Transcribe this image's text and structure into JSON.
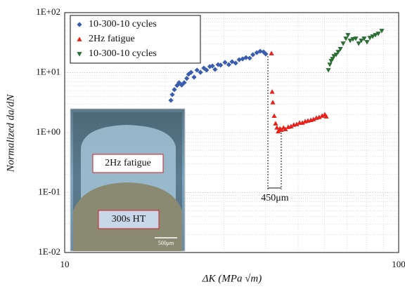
{
  "chart_data": {
    "type": "scatter",
    "x_label": "ΔK (MPa √m)",
    "y_label": "Normalized da/dN",
    "xlim": [
      10,
      100
    ],
    "xticks": [
      10,
      100
    ],
    "ylim": [
      0.01,
      100
    ],
    "yticks": [
      {
        "value": 0.01,
        "label": "1E-02"
      },
      {
        "value": 0.1,
        "label": "1E-01"
      },
      {
        "value": 1,
        "label": "1E+00"
      },
      {
        "value": 10,
        "label": "1E+01"
      },
      {
        "value": 100,
        "label": "1E+02"
      }
    ],
    "log_x": true,
    "log_y": true,
    "grid": true,
    "minor_grid": true,
    "legend": "upper left",
    "series": [
      {
        "name": "10-300-10 cycles",
        "color": "#3a5dae",
        "marker": "diamond",
        "x": [
          20.8,
          21.0,
          21.3,
          21.7,
          22.0,
          22.4,
          22.8,
          23.2,
          23.5,
          23.9,
          24.4,
          24.9,
          25.5,
          26.1,
          26.6,
          27.2,
          27.7,
          28.2,
          28.8,
          29.3,
          30.2,
          31.0,
          31.7,
          32.5,
          33.3,
          34.1,
          34.9,
          35.8,
          36.6,
          37.6,
          38.5,
          39.4,
          40.0
        ],
        "values": [
          3.45,
          4.3,
          5.2,
          6.1,
          6.8,
          6.2,
          6.8,
          8.0,
          9.4,
          10.1,
          8.4,
          11.0,
          10.1,
          11.9,
          11.0,
          12.6,
          12.9,
          11.3,
          13.6,
          13.3,
          14.8,
          13.6,
          15.2,
          14.4,
          16.4,
          16.9,
          17.8,
          17.4,
          19.9,
          21.5,
          22.7,
          22.1,
          20.4
        ]
      },
      {
        "name": "2Hz fatigue",
        "color": "#e8221b",
        "marker": "triangle-up",
        "x": [
          41.6,
          41.8,
          42.0,
          42.4,
          42.8,
          43.2,
          43.6,
          44.1,
          44.5,
          45.2,
          45.8,
          46.7,
          47.6,
          48.5,
          49.5,
          50.5,
          51.5,
          52.5,
          53.5,
          54.6,
          55.6,
          56.7,
          57.8,
          59.0,
          60.1,
          60.7
        ],
        "values": [
          21,
          4.8,
          3.2,
          1.9,
          1.42,
          1.21,
          1.05,
          1.17,
          1.11,
          1.21,
          1.14,
          1.24,
          1.27,
          1.35,
          1.38,
          1.46,
          1.46,
          1.54,
          1.58,
          1.62,
          1.67,
          1.76,
          1.81,
          1.91,
          2.01,
          1.86
        ]
      },
      {
        "name": "10-300-10 cycles",
        "color": "#2a6e34",
        "marker": "triangle-down",
        "x": [
          61.6,
          62.2,
          62.8,
          63.4,
          64.0,
          65.0,
          65.9,
          66.9,
          68.2,
          69.5,
          70.5,
          71.6,
          73.0,
          74.4,
          75.9,
          77.3,
          78.8,
          80.4,
          82.0,
          83.6,
          85.2,
          86.9,
          89.0
        ],
        "values": [
          11.0,
          13.6,
          15.6,
          16.9,
          18.8,
          19.9,
          22.1,
          24.7,
          30.6,
          36.9,
          42.3,
          34.1,
          36.0,
          36.9,
          30.6,
          34.1,
          36.9,
          32.3,
          37.9,
          40.0,
          42.3,
          44.6,
          49.7
        ]
      }
    ],
    "annotation": "450μm",
    "inset_labels": [
      "2Hz fatigue",
      "300s HT",
      "500μm"
    ]
  }
}
